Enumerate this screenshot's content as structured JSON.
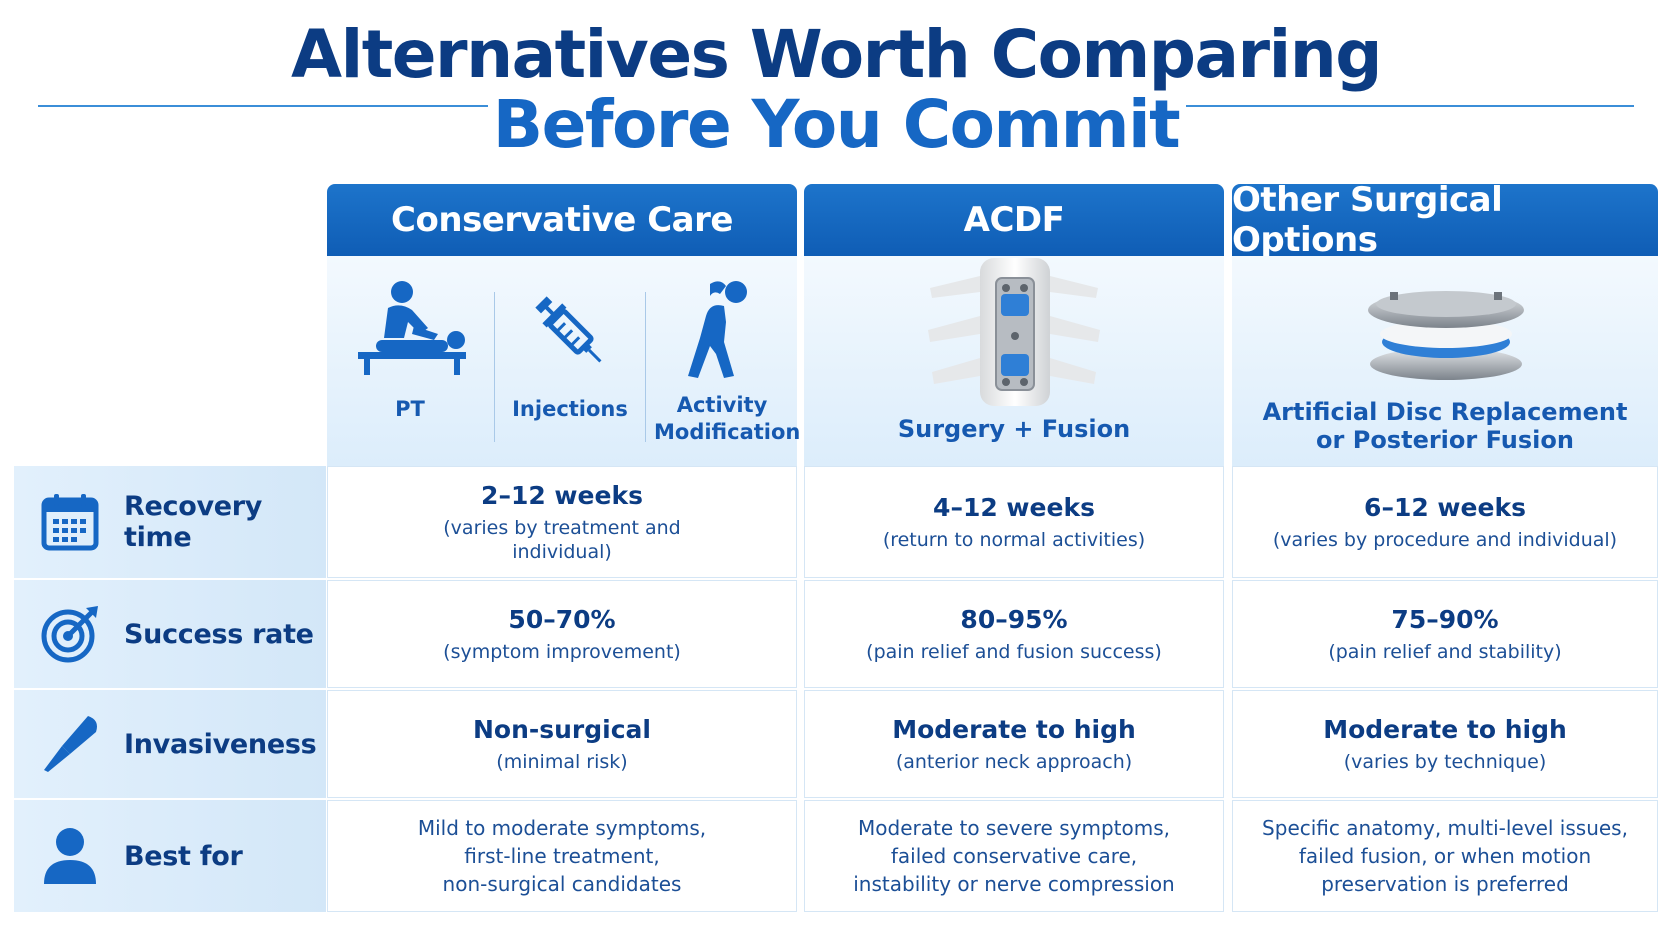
{
  "title": {
    "line1": "Alternatives Worth Comparing",
    "line2": "Before You Commit"
  },
  "columns": [
    {
      "header": "Conservative Care",
      "options": [
        {
          "label": "PT",
          "icon": "massage-therapy-icon"
        },
        {
          "label": "Injections",
          "icon": "syringe-icon"
        },
        {
          "label": "Activity Modification",
          "icon": "stretching-person-icon"
        }
      ]
    },
    {
      "header": "ACDF",
      "caption": "Surgery + Fusion",
      "image": "cervical-spine-fusion-plate"
    },
    {
      "header": "Other Surgical Options",
      "caption_line1": "Artificial Disc Replacement",
      "caption_line2": "or Posterior Fusion",
      "image": "artificial-disc-implant"
    }
  ],
  "rows": [
    {
      "label": "Recovery time",
      "icon": "calendar-icon",
      "cells": [
        {
          "main": "2–12 weeks",
          "note_line1": "(varies by treatment and",
          "note_line2": "individual)"
        },
        {
          "main": "4–12 weeks",
          "note_line1": "(return to normal activities)"
        },
        {
          "main": "6–12 weeks",
          "note_line1": "(varies by procedure and individual)"
        }
      ]
    },
    {
      "label": "Success rate",
      "icon": "target-icon",
      "cells": [
        {
          "main": "50–70%",
          "note_line1": "(symptom improvement)"
        },
        {
          "main": "80–95%",
          "note_line1": "(pain relief and fusion success)"
        },
        {
          "main": "75–90%",
          "note_line1": "(pain relief and stability)"
        }
      ]
    },
    {
      "label": "Invasiveness",
      "icon": "scalpel-icon",
      "cells": [
        {
          "main": "Non-surgical",
          "note_line1": "(minimal risk)"
        },
        {
          "main": "Moderate to high",
          "note_line1": "(anterior neck approach)"
        },
        {
          "main": "Moderate to high",
          "note_line1": "(varies by technique)"
        }
      ]
    },
    {
      "label": "Best for",
      "icon": "person-icon",
      "cells": [
        {
          "line1": "Mild to moderate symptoms,",
          "line2": "first-line treatment,",
          "line3": "non-surgical candidates"
        },
        {
          "line1": "Moderate to severe symptoms,",
          "line2": "failed conservative care,",
          "line3": "instability or nerve compression"
        },
        {
          "line1": "Specific anatomy, multi-level issues,",
          "line2": "failed fusion, or when motion",
          "line3": "preservation is preferred"
        }
      ]
    }
  ],
  "colors": {
    "dark_blue": "#0c3c83",
    "accent_blue": "#1667c4",
    "header_blue": "#1667c4",
    "light_blue": "#e2f0fc"
  }
}
